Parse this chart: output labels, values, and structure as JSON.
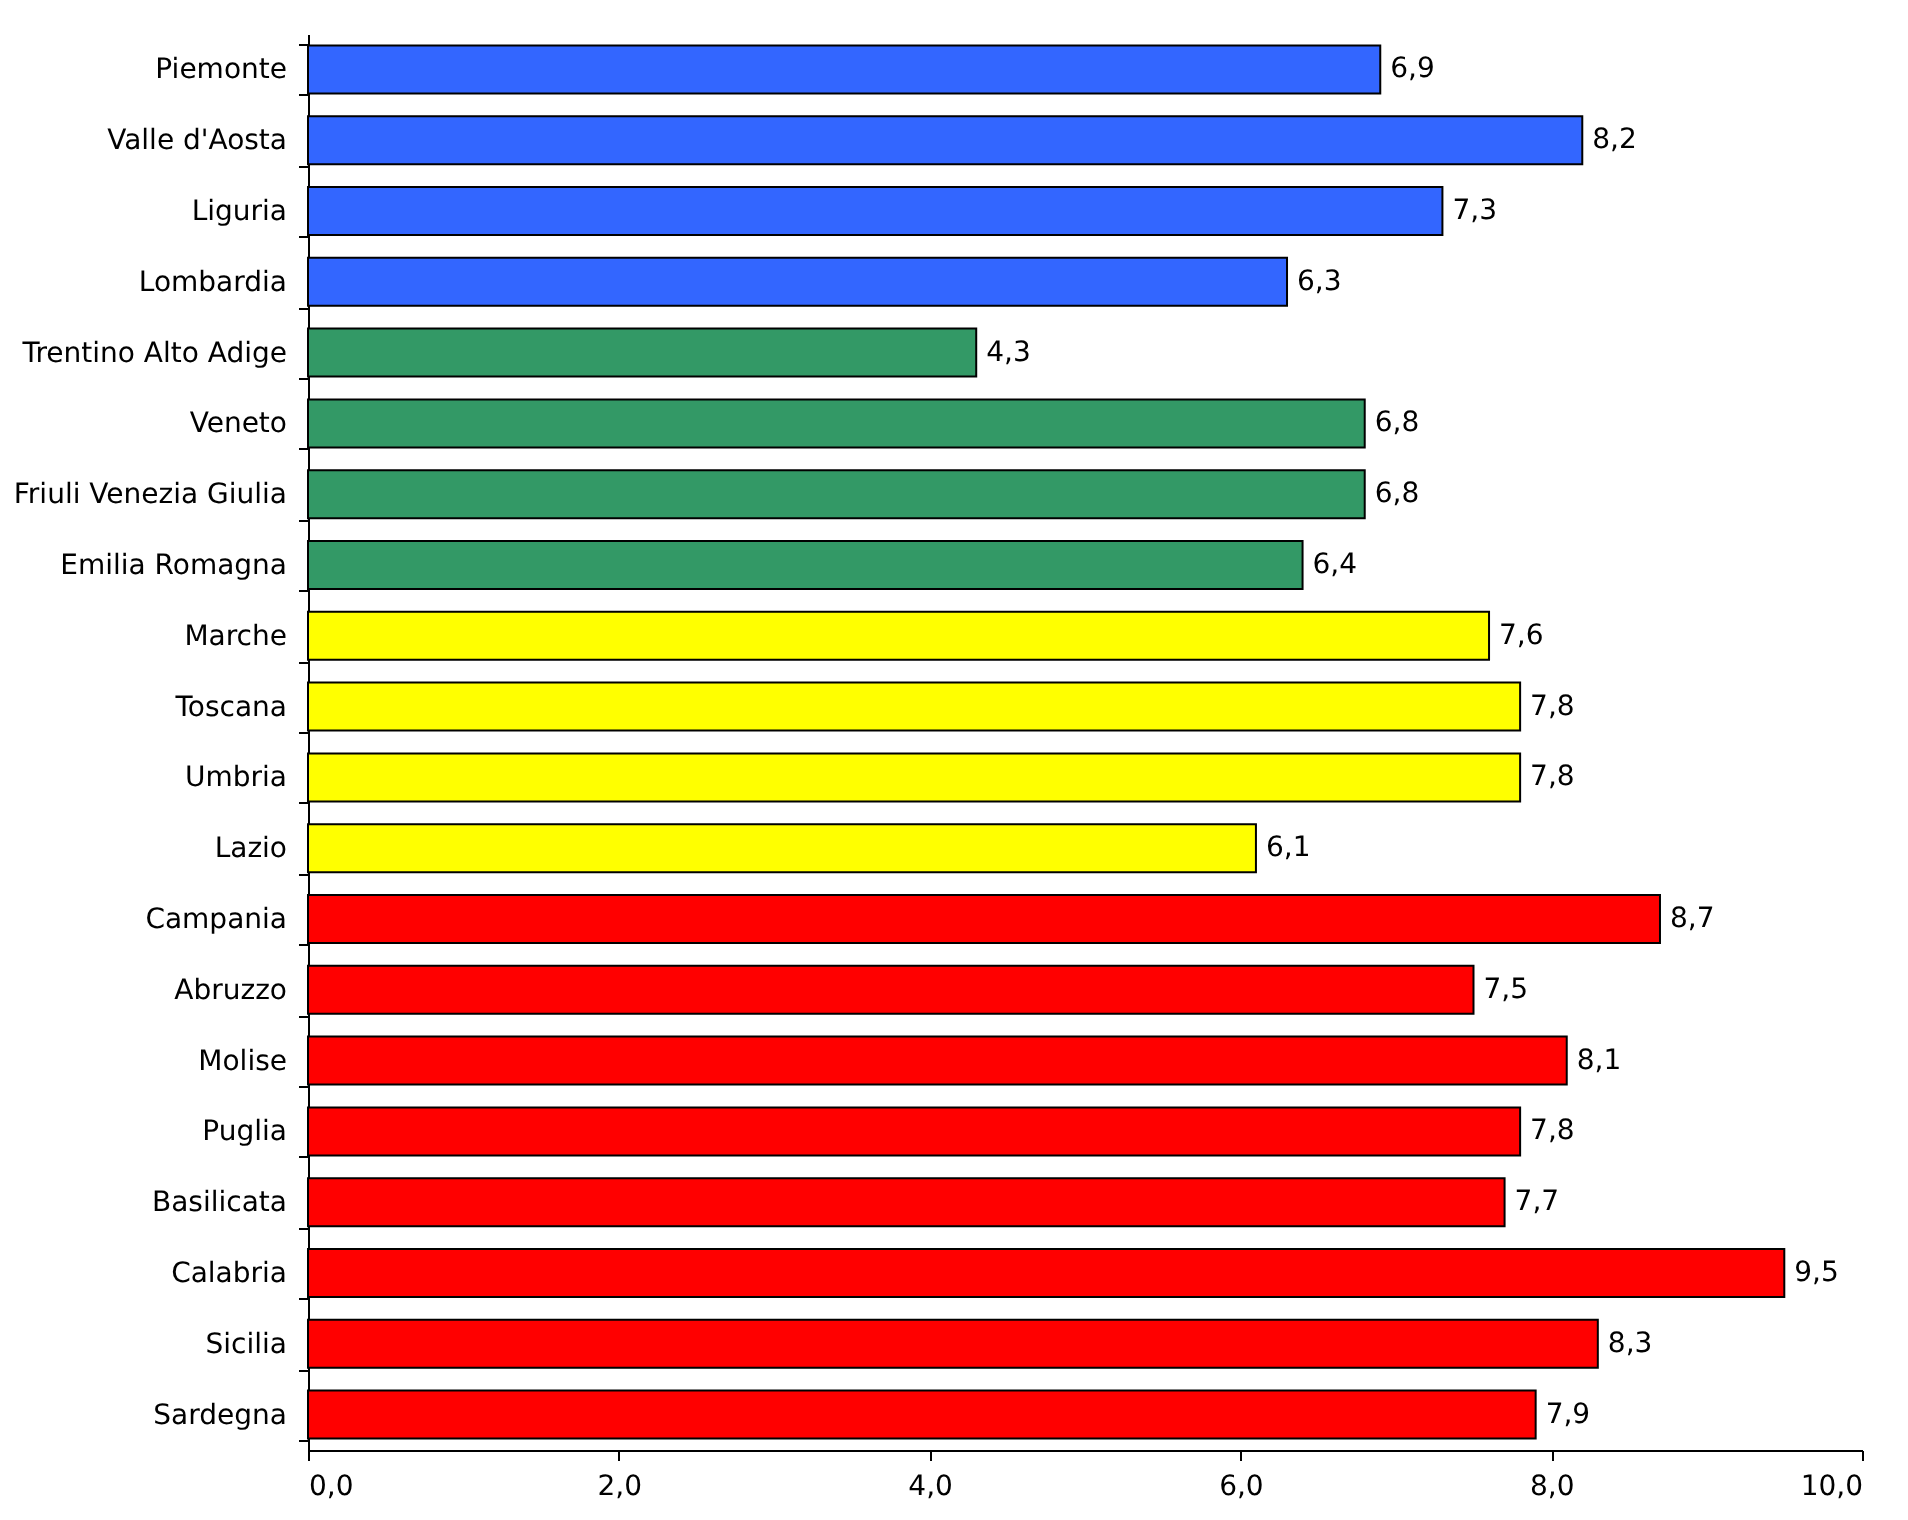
{
  "chart_data": {
    "type": "bar",
    "orientation": "horizontal",
    "categories": [
      "Piemonte",
      "Valle d'Aosta",
      "Liguria",
      "Lombardia",
      "Trentino Alto Adige",
      "Veneto",
      "Friuli Venezia Giulia",
      "Emilia Romagna",
      "Marche",
      "Toscana",
      "Umbria",
      "Lazio",
      "Campania",
      "Abruzzo",
      "Molise",
      "Puglia",
      "Basilicata",
      "Calabria",
      "Sicilia",
      "Sardegna"
    ],
    "values": [
      6.9,
      8.2,
      7.3,
      6.3,
      4.3,
      6.8,
      6.8,
      6.4,
      7.6,
      7.8,
      7.8,
      6.1,
      8.7,
      7.5,
      8.1,
      7.8,
      7.7,
      9.5,
      8.3,
      7.9
    ],
    "value_labels": [
      "6,9",
      "8,2",
      "7,3",
      "6,3",
      "4,3",
      "6,8",
      "6,8",
      "6,4",
      "7,6",
      "7,8",
      "7,8",
      "6,1",
      "8,7",
      "7,5",
      "8,1",
      "7,8",
      "7,7",
      "9,5",
      "8,3",
      "7,9"
    ],
    "colors": [
      "#3366ff",
      "#3366ff",
      "#3366ff",
      "#3366ff",
      "#339966",
      "#339966",
      "#339966",
      "#339966",
      "#ffff00",
      "#ffff00",
      "#ffff00",
      "#ffff00",
      "#ff0000",
      "#ff0000",
      "#ff0000",
      "#ff0000",
      "#ff0000",
      "#ff0000",
      "#ff0000",
      "#ff0000"
    ],
    "xlim": [
      0,
      10
    ],
    "xticks": [
      {
        "value": 0,
        "label": "0,0"
      },
      {
        "value": 2,
        "label": "2,0"
      },
      {
        "value": 4,
        "label": "4,0"
      },
      {
        "value": 6,
        "label": "6,0"
      },
      {
        "value": 8,
        "label": "8,0"
      },
      {
        "value": 10,
        "label": "10,0"
      }
    ],
    "grid": false,
    "legend": false
  }
}
